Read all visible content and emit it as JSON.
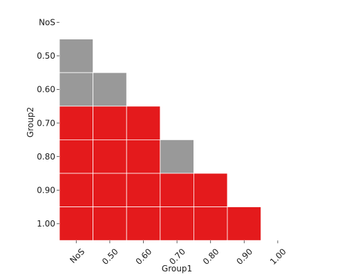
{
  "chart_data": {
    "type": "heatmap",
    "title": "",
    "xlabel": "Group1",
    "ylabel": "Group2",
    "x_categories": [
      "NoS",
      "0.50",
      "0.60",
      "0.70",
      "0.80",
      "0.90",
      "1.00"
    ],
    "y_categories": [
      "NoS",
      "0.50",
      "0.60",
      "0.70",
      "0.80",
      "0.90",
      "1.00"
    ],
    "cells": [
      {
        "x": "NoS",
        "y": "0.50",
        "status": "gray"
      },
      {
        "x": "NoS",
        "y": "0.60",
        "status": "gray"
      },
      {
        "x": "0.50",
        "y": "0.60",
        "status": "gray"
      },
      {
        "x": "NoS",
        "y": "0.70",
        "status": "red"
      },
      {
        "x": "0.50",
        "y": "0.70",
        "status": "red"
      },
      {
        "x": "0.60",
        "y": "0.70",
        "status": "red"
      },
      {
        "x": "NoS",
        "y": "0.80",
        "status": "red"
      },
      {
        "x": "0.50",
        "y": "0.80",
        "status": "red"
      },
      {
        "x": "0.60",
        "y": "0.80",
        "status": "red"
      },
      {
        "x": "0.70",
        "y": "0.80",
        "status": "gray"
      },
      {
        "x": "NoS",
        "y": "0.90",
        "status": "red"
      },
      {
        "x": "0.50",
        "y": "0.90",
        "status": "red"
      },
      {
        "x": "0.60",
        "y": "0.90",
        "status": "red"
      },
      {
        "x": "0.70",
        "y": "0.90",
        "status": "red"
      },
      {
        "x": "0.80",
        "y": "0.90",
        "status": "red"
      },
      {
        "x": "NoS",
        "y": "1.00",
        "status": "red"
      },
      {
        "x": "0.50",
        "y": "1.00",
        "status": "red"
      },
      {
        "x": "0.60",
        "y": "1.00",
        "status": "red"
      },
      {
        "x": "0.70",
        "y": "1.00",
        "status": "red"
      },
      {
        "x": "0.80",
        "y": "1.00",
        "status": "red"
      },
      {
        "x": "0.90",
        "y": "1.00",
        "status": "red"
      }
    ],
    "colors": {
      "red": "#e41a1c",
      "gray": "#999999",
      "gridline": "#ffffff"
    },
    "legend": "none"
  }
}
